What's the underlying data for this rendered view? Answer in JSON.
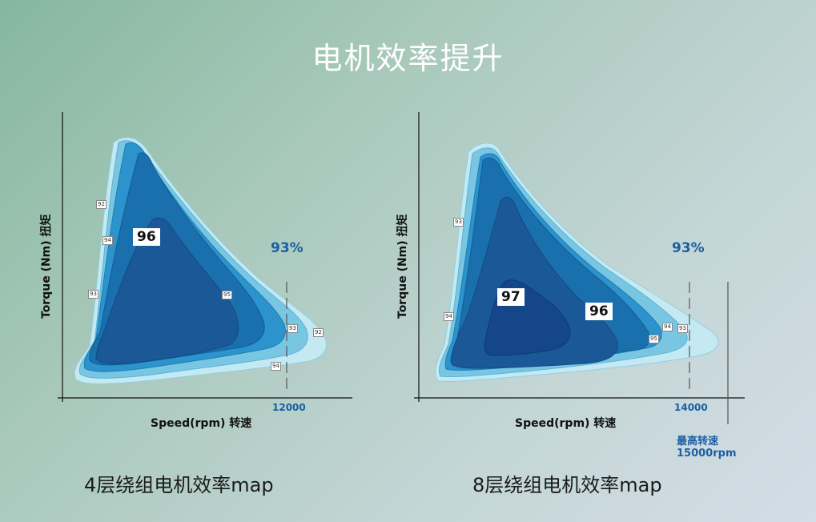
{
  "page": {
    "title": "电机效率提升"
  },
  "colors": {
    "lvl1": "#c5e9f2",
    "lvl2": "#79c6e3",
    "lvl3": "#2c93cc",
    "lvl4": "#1a6fad",
    "lvl5": "#1b5897",
    "lvl6": "#15468a",
    "accent": "#1c5fa3"
  },
  "chart_data": [
    {
      "type": "heatmap",
      "caption": "4层绕组电机效率map",
      "xlabel": "Speed(rpm) 转速",
      "ylabel": "Torque (Nm) 扭矩",
      "highlight_label": "93%",
      "x_ticks": [
        "12000"
      ],
      "zone_labels": [
        "96"
      ],
      "contour_labels": [
        "92",
        "94",
        "93",
        "95",
        "93",
        "92",
        "94"
      ]
    },
    {
      "type": "heatmap",
      "caption": "8层绕组电机效率map",
      "xlabel": "Speed(rpm) 转速",
      "ylabel": "Torque (Nm) 扭矩",
      "highlight_label": "93%",
      "x_ticks": [
        "14000"
      ],
      "zone_labels": [
        "97",
        "96"
      ],
      "contour_labels": [
        "93",
        "94",
        "95",
        "94",
        "93"
      ],
      "note": "最高转速15000rpm"
    }
  ]
}
